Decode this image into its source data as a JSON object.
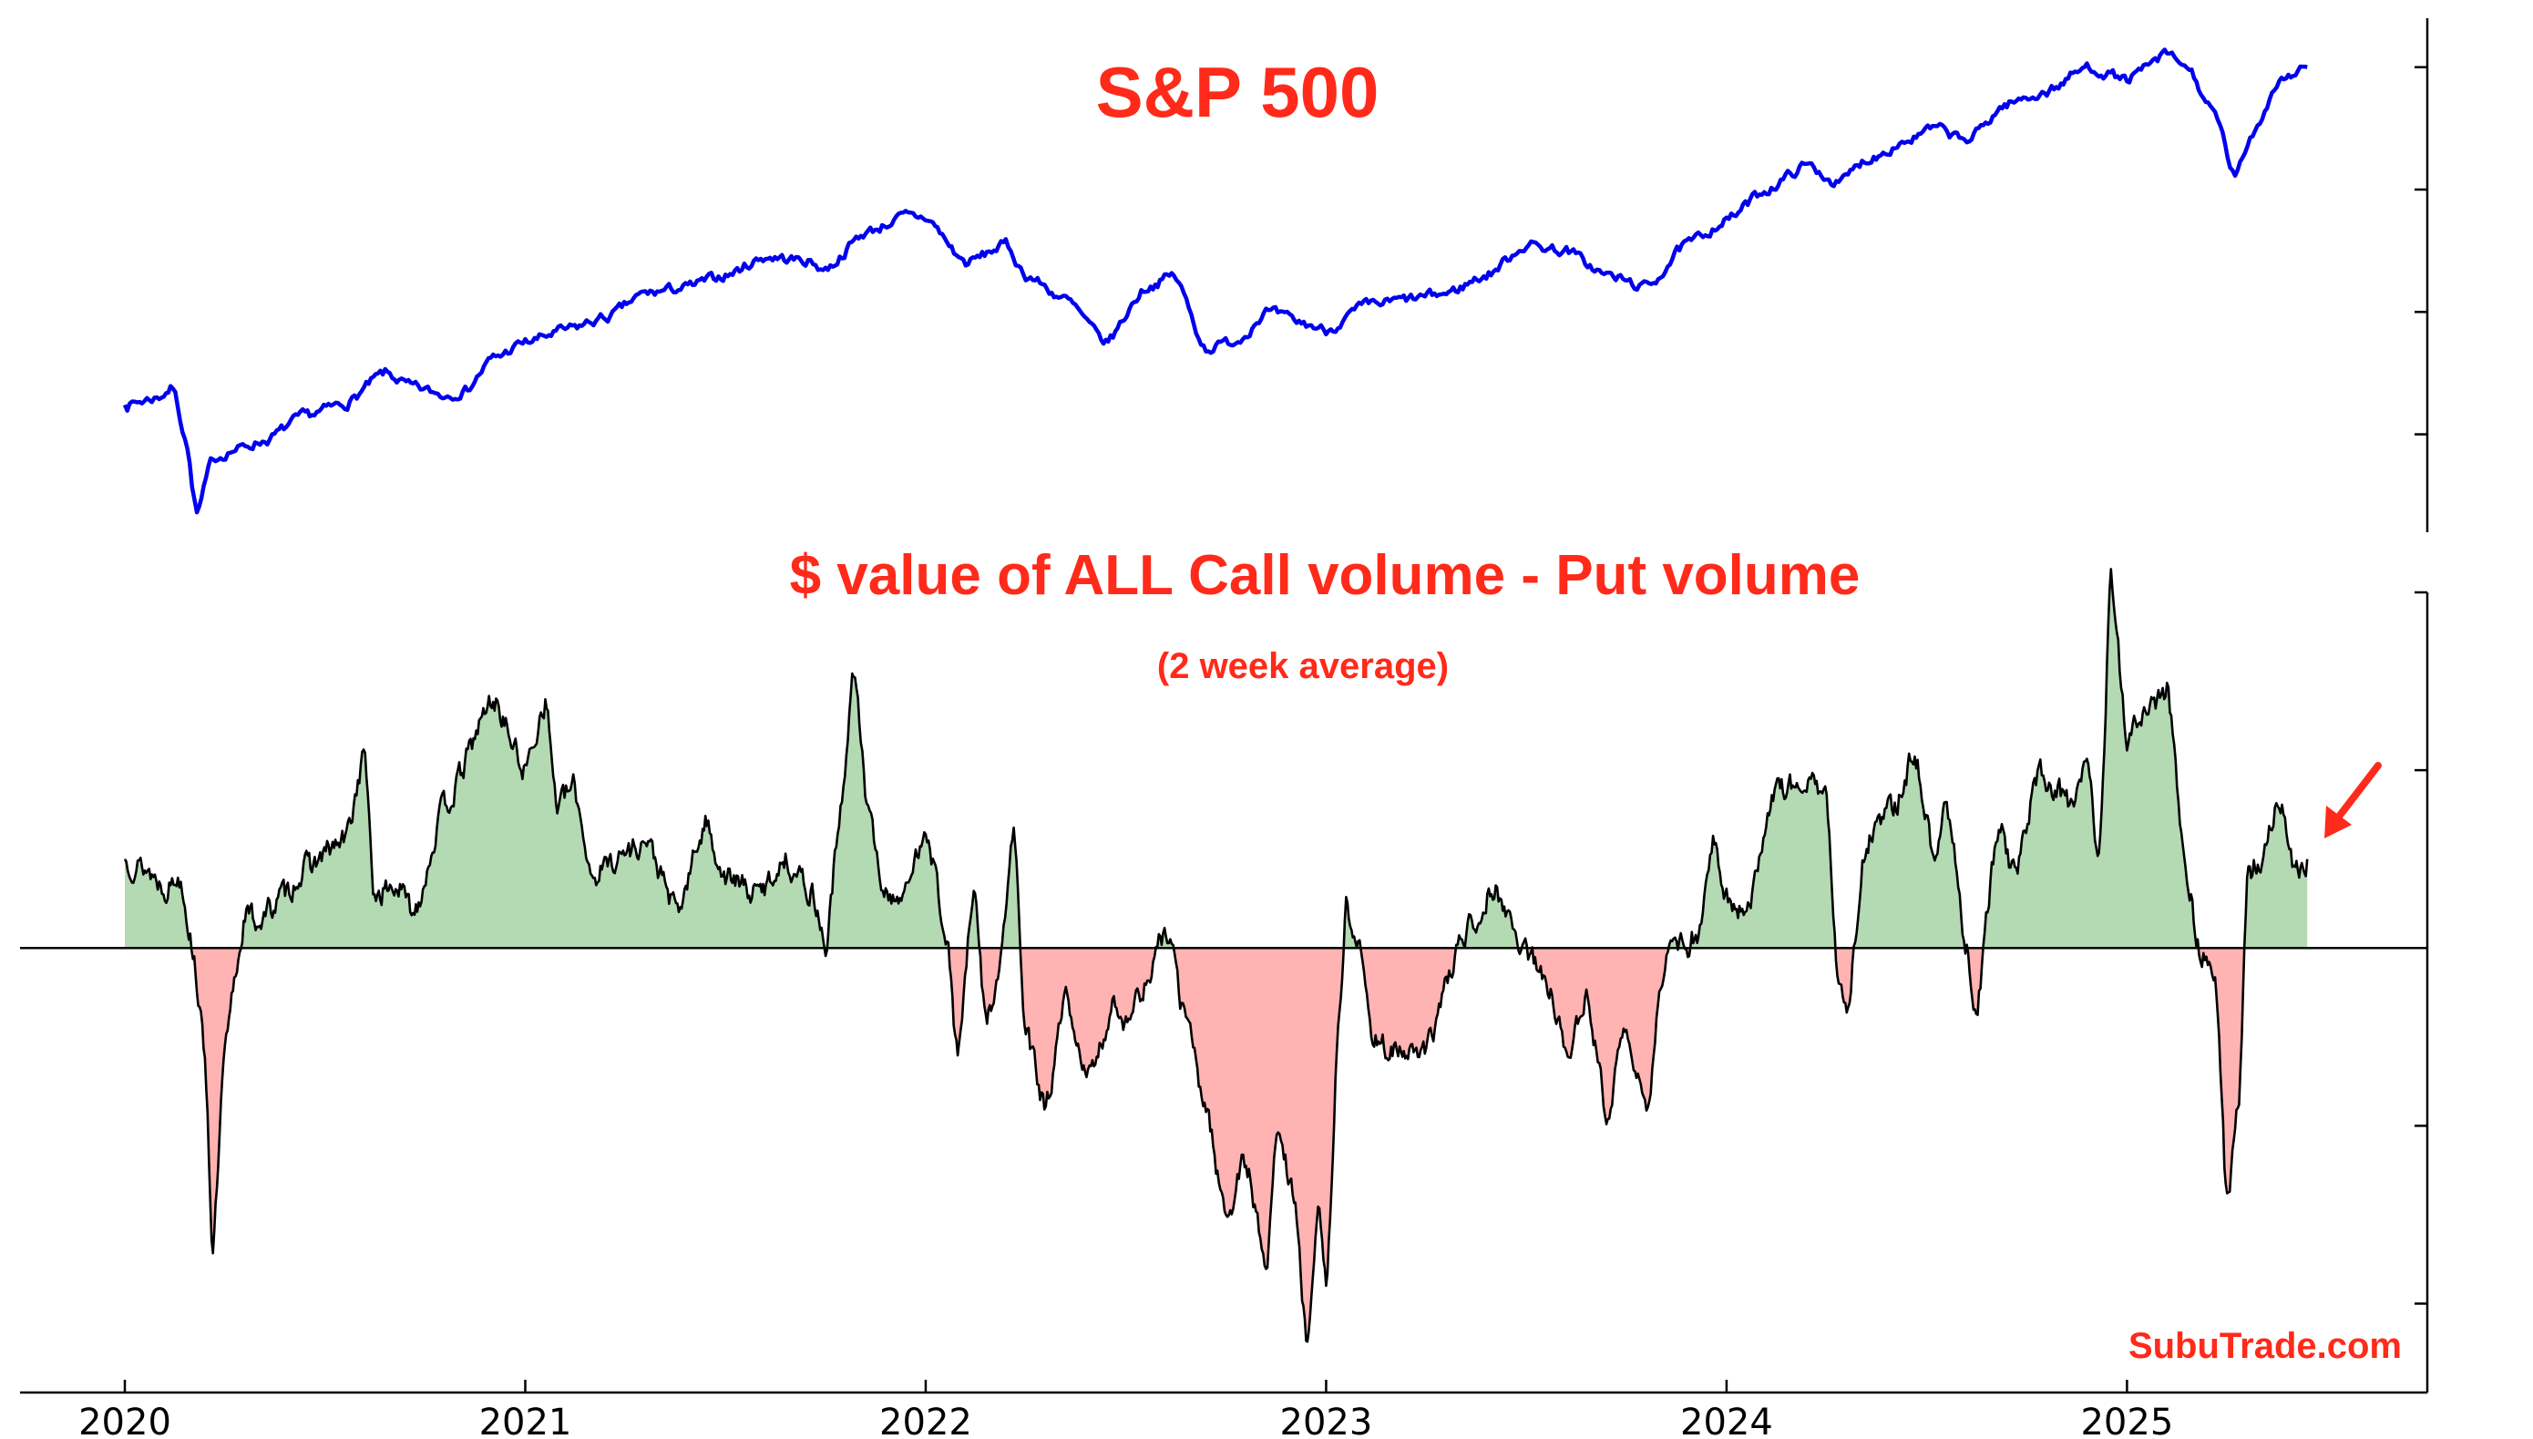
{
  "chart_data": [
    {
      "type": "line",
      "title": "S&P 500",
      "xlabel": "",
      "ylabel": "",
      "xlim": [
        2020.0,
        2025.75
      ],
      "ylim": [
        2200,
        6400
      ],
      "series": [
        {
          "name": "S&P 500",
          "color": "#0000ee",
          "x": [
            2020.0,
            2020.08,
            2020.12,
            2020.15,
            2020.18,
            2020.22,
            2020.27,
            2020.35,
            2020.45,
            2020.55,
            2020.65,
            2020.72,
            2020.8,
            2020.85,
            2020.92,
            2021.0,
            2021.1,
            2021.2,
            2021.3,
            2021.4,
            2021.5,
            2021.6,
            2021.7,
            2021.75,
            2021.85,
            2021.95,
            2022.0,
            2022.1,
            2022.2,
            2022.25,
            2022.35,
            2022.45,
            2022.55,
            2022.62,
            2022.7,
            2022.78,
            2022.85,
            2022.95,
            2023.0,
            2023.1,
            2023.2,
            2023.3,
            2023.4,
            2023.5,
            2023.6,
            2023.7,
            2023.8,
            2023.9,
            2024.0,
            2024.1,
            2024.2,
            2024.28,
            2024.35,
            2024.45,
            2024.52,
            2024.6,
            2024.7,
            2024.8,
            2024.9,
            2025.0,
            2025.1,
            2025.15,
            2025.22,
            2025.27,
            2025.32,
            2025.38,
            2025.45
          ],
          "values": [
            3240,
            3300,
            3380,
            3000,
            2350,
            2800,
            2870,
            2950,
            3150,
            3250,
            3500,
            3380,
            3320,
            3360,
            3620,
            3750,
            3850,
            3950,
            4150,
            4200,
            4300,
            4450,
            4420,
            4350,
            4650,
            4780,
            4770,
            4400,
            4550,
            4300,
            4100,
            3750,
            4200,
            4300,
            3700,
            3770,
            4000,
            3900,
            3850,
            4050,
            4100,
            4150,
            4300,
            4550,
            4500,
            4300,
            4200,
            4550,
            4750,
            5000,
            5200,
            5050,
            5250,
            5400,
            5500,
            5400,
            5700,
            5800,
            6000,
            5900,
            6100,
            6000,
            5600,
            5100,
            5500,
            5900,
            6000
          ]
        }
      ]
    },
    {
      "type": "area",
      "title": "$ value of ALL Call volume - Put volume",
      "subtitle": "(2 week average)",
      "xlabel": "",
      "ylabel": "",
      "xlim": [
        2020.0,
        2025.75
      ],
      "ylim": [
        -2.5,
        2.0
      ],
      "x_ticks": [
        2020,
        2021,
        2022,
        2023,
        2024,
        2025
      ],
      "x_tick_labels": [
        "2020",
        "2021",
        "2022",
        "2023",
        "2024",
        "2025"
      ],
      "y_ticks": [
        -2,
        -1,
        0,
        1,
        2
      ],
      "positive_fill": "#b3dab3",
      "negative_fill": "#ffb3b3",
      "line_color": "#000000",
      "annotation": "red arrow pointing to latest value",
      "series": [
        {
          "name": "Call $ volume - Put $ volume (2wk avg)",
          "x": [
            2020.0,
            2020.05,
            2020.1,
            2020.14,
            2020.17,
            2020.2,
            2020.22,
            2020.25,
            2020.28,
            2020.3,
            2020.33,
            2020.4,
            2020.45,
            2020.55,
            2020.6,
            2020.62,
            2020.68,
            2020.72,
            2020.8,
            2020.92,
            2021.0,
            2021.05,
            2021.08,
            2021.12,
            2021.17,
            2021.22,
            2021.3,
            2021.38,
            2021.45,
            2021.5,
            2021.58,
            2021.65,
            2021.72,
            2021.75,
            2021.78,
            2021.82,
            2021.86,
            2021.9,
            2021.95,
            2022.0,
            2022.05,
            2022.08,
            2022.12,
            2022.15,
            2022.18,
            2022.22,
            2022.25,
            2022.3,
            2022.35,
            2022.38,
            2022.42,
            2022.47,
            2022.5,
            2022.55,
            2022.6,
            2022.65,
            2022.7,
            2022.75,
            2022.8,
            2022.85,
            2022.88,
            2022.92,
            2022.95,
            2022.98,
            2023.0,
            2023.03,
            2023.05,
            2023.08,
            2023.12,
            2023.18,
            2023.25,
            2023.3,
            2023.35,
            2023.42,
            2023.48,
            2023.55,
            2023.6,
            2023.65,
            2023.7,
            2023.75,
            2023.8,
            2023.85,
            2023.9,
            2023.93,
            2023.97,
            2024.0,
            2024.05,
            2024.12,
            2024.2,
            2024.25,
            2024.28,
            2024.3,
            2024.35,
            2024.42,
            2024.47,
            2024.52,
            2024.55,
            2024.6,
            2024.62,
            2024.68,
            2024.72,
            2024.78,
            2024.82,
            2024.86,
            2024.9,
            2024.93,
            2024.96,
            2025.0,
            2025.05,
            2025.1,
            2025.15,
            2025.18,
            2025.22,
            2025.25,
            2025.28,
            2025.3,
            2025.33,
            2025.38,
            2025.42,
            2025.45
          ],
          "values": [
            0.5,
            0.45,
            0.35,
            0.4,
            0.0,
            -0.6,
            -1.7,
            -0.6,
            -0.1,
            0.2,
            0.15,
            0.3,
            0.45,
            0.6,
            1.1,
            0.3,
            0.35,
            0.2,
            0.8,
            1.4,
            1.0,
            1.4,
            0.8,
            0.9,
            0.4,
            0.5,
            0.6,
            0.2,
            0.7,
            0.4,
            0.3,
            0.5,
            0.3,
            0.0,
            0.6,
            1.55,
            0.7,
            0.3,
            0.3,
            0.7,
            0.1,
            -0.6,
            0.3,
            -0.4,
            -0.2,
            0.65,
            -0.5,
            -0.9,
            -0.3,
            -0.6,
            -0.7,
            -0.3,
            -0.4,
            -0.2,
            0.1,
            -0.4,
            -0.9,
            -1.5,
            -1.2,
            -1.8,
            -1.0,
            -1.4,
            -2.2,
            -1.5,
            -1.9,
            -0.5,
            0.25,
            0.0,
            -0.5,
            -0.6,
            -0.6,
            -0.2,
            0.1,
            0.35,
            0.05,
            -0.2,
            -0.55,
            -0.3,
            -0.9,
            -0.5,
            -0.9,
            0.0,
            0.0,
            0.1,
            0.6,
            0.3,
            0.2,
            0.9,
            0.95,
            0.8,
            -0.2,
            -0.3,
            0.6,
            0.8,
            1.1,
            0.5,
            0.8,
            0.0,
            -0.4,
            0.7,
            0.4,
            1.0,
            0.9,
            0.8,
            1.1,
            0.5,
            2.05,
            1.2,
            1.3,
            1.45,
            0.4,
            0.0,
            -0.1,
            -1.45,
            -0.8,
            0.4,
            0.5,
            0.85,
            0.4,
            0.5
          ]
        }
      ]
    }
  ],
  "watermark": "SubuTrade.com"
}
